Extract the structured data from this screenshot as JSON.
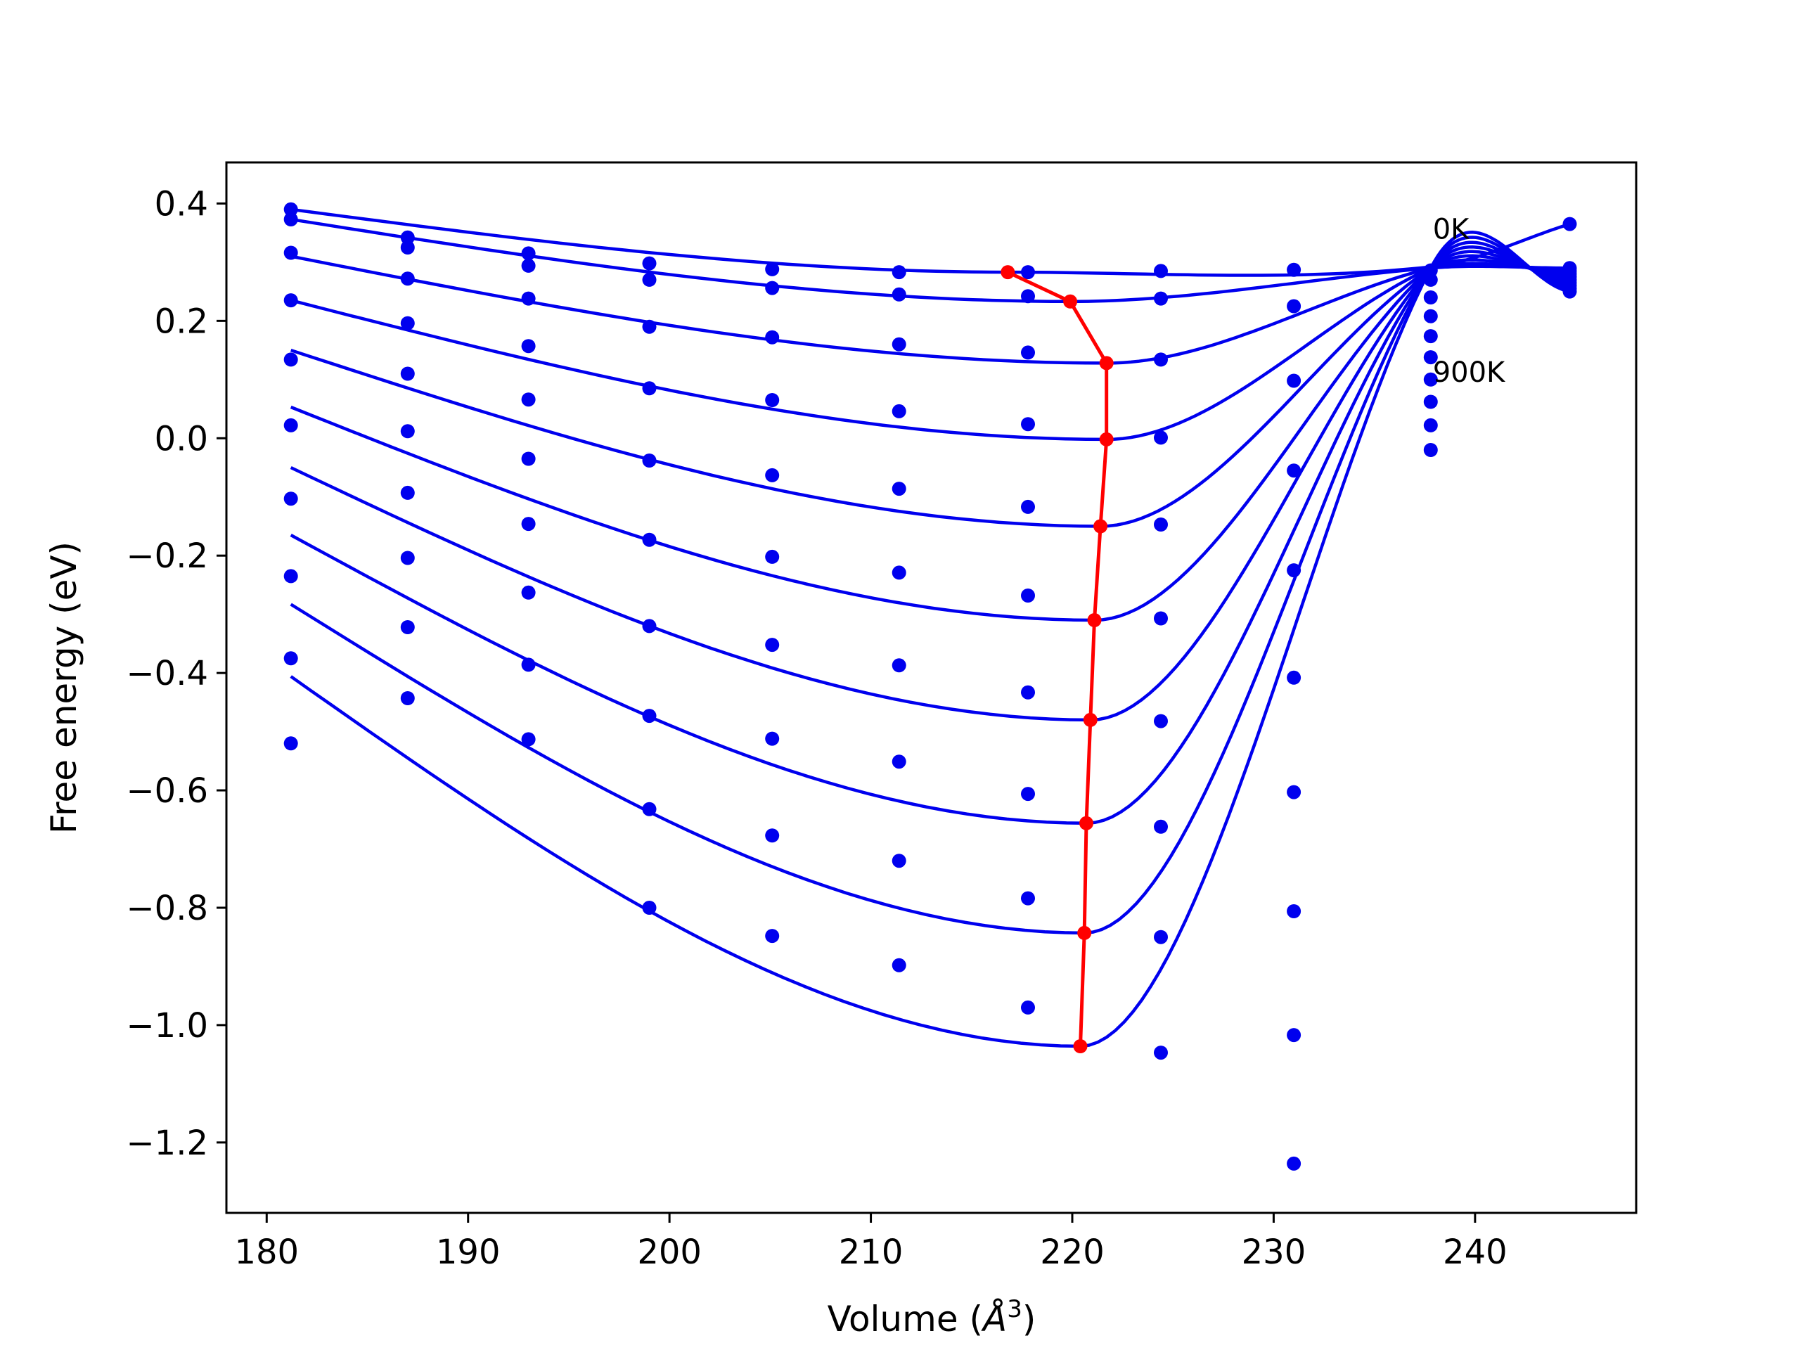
{
  "chart_data": {
    "type": "line",
    "xlabel": "Volume (",
    "xlabel_unit": "Å",
    "xlabel_exp": "3",
    "xlabel_close": ")",
    "ylabel": "Free energy (eV)",
    "xlim": [
      178,
      248
    ],
    "ylim": [
      -1.32,
      0.47
    ],
    "xticks": [
      180,
      190,
      200,
      210,
      220,
      230,
      240
    ],
    "yticks": [
      0.4,
      0.2,
      0.0,
      -0.2,
      -0.4,
      -0.6,
      -0.8,
      -1.0,
      -1.2
    ],
    "ytick_labels": [
      "0.4",
      "0.2",
      "0.0",
      "−0.2",
      "−0.4",
      "−0.6",
      "−0.8",
      "−1.0",
      "−1.2"
    ],
    "xtick_labels": [
      "180",
      "190",
      "200",
      "210",
      "220",
      "230",
      "240"
    ],
    "colors": {
      "curves": "#0000ee",
      "points": "#0000ee",
      "minima": "#ff0000"
    },
    "grid": false,
    "volumes": [
      181.2,
      187.0,
      193.0,
      199.0,
      205.1,
      211.4,
      217.8,
      224.4,
      231.0,
      237.8
    ],
    "fit_end_x": 244.7,
    "series": [
      {
        "values": [
          0.39,
          0.342,
          0.315,
          0.298,
          0.288,
          0.283,
          0.283,
          0.285,
          0.287,
          0.286
        ],
        "curve": [
          0.39,
          0.283,
          0.292,
          0.365
        ]
      },
      {
        "values": [
          0.373,
          0.325,
          0.294,
          0.27,
          0.256,
          0.245,
          0.242,
          0.238,
          0.225,
          0.27
        ],
        "curve": [
          0.373,
          0.233,
          0.29,
          0.29
        ]
      },
      {
        "values": [
          0.316,
          0.272,
          0.238,
          0.19,
          0.172,
          0.16,
          0.146,
          0.134,
          0.098,
          0.24
        ],
        "curve": [
          0.31,
          0.128,
          0.29,
          0.285
        ]
      },
      {
        "values": [
          0.235,
          0.196,
          0.157,
          0.085,
          0.065,
          0.046,
          0.024,
          0.001,
          -0.055,
          0.208
        ],
        "curve": [
          0.235,
          -0.002,
          0.29,
          0.28
        ]
      },
      {
        "values": [
          0.134,
          0.11,
          0.066,
          -0.038,
          -0.063,
          -0.086,
          -0.117,
          -0.147,
          -0.225,
          0.174
        ],
        "curve": [
          0.15,
          -0.15,
          0.29,
          0.275
        ]
      },
      {
        "values": [
          0.022,
          0.012,
          -0.035,
          -0.173,
          -0.202,
          -0.229,
          -0.268,
          -0.307,
          -0.408,
          0.138
        ],
        "curve": [
          0.053,
          -0.31,
          0.29,
          0.27
        ]
      },
      {
        "values": [
          -0.103,
          -0.093,
          -0.146,
          -0.32,
          -0.352,
          -0.387,
          -0.433,
          -0.482,
          -0.603,
          0.1
        ],
        "curve": [
          -0.05,
          -0.48,
          0.29,
          0.265
        ]
      },
      {
        "values": [
          -0.235,
          -0.204,
          -0.263,
          -0.473,
          -0.512,
          -0.551,
          -0.606,
          -0.662,
          -0.806,
          0.062
        ],
        "curve": [
          -0.165,
          -0.656,
          0.29,
          0.26
        ]
      },
      {
        "values": [
          -0.375,
          -0.322,
          -0.386,
          -0.632,
          -0.677,
          -0.72,
          -0.784,
          -0.85,
          -1.017,
          0.022
        ],
        "curve": [
          -0.283,
          -0.843,
          0.29,
          0.255
        ]
      },
      {
        "values": [
          -0.52,
          -0.443,
          -0.513,
          -0.8,
          -0.848,
          -0.898,
          -0.97,
          -1.047,
          -1.236,
          -0.02
        ],
        "curve": [
          -0.406,
          -1.036,
          0.29,
          0.25
        ]
      }
    ],
    "minima": {
      "x": [
        216.8,
        219.9,
        221.7,
        221.7,
        221.4,
        221.1,
        220.9,
        220.7,
        220.6,
        220.4
      ],
      "y": [
        0.283,
        0.233,
        0.128,
        -0.002,
        -0.15,
        -0.31,
        -0.48,
        -0.656,
        -0.843,
        -1.036
      ]
    },
    "annotations": [
      {
        "text": "0K",
        "x": 237.9,
        "y": 0.34
      },
      {
        "text": "900K",
        "x": 237.9,
        "y": 0.096
      }
    ]
  }
}
